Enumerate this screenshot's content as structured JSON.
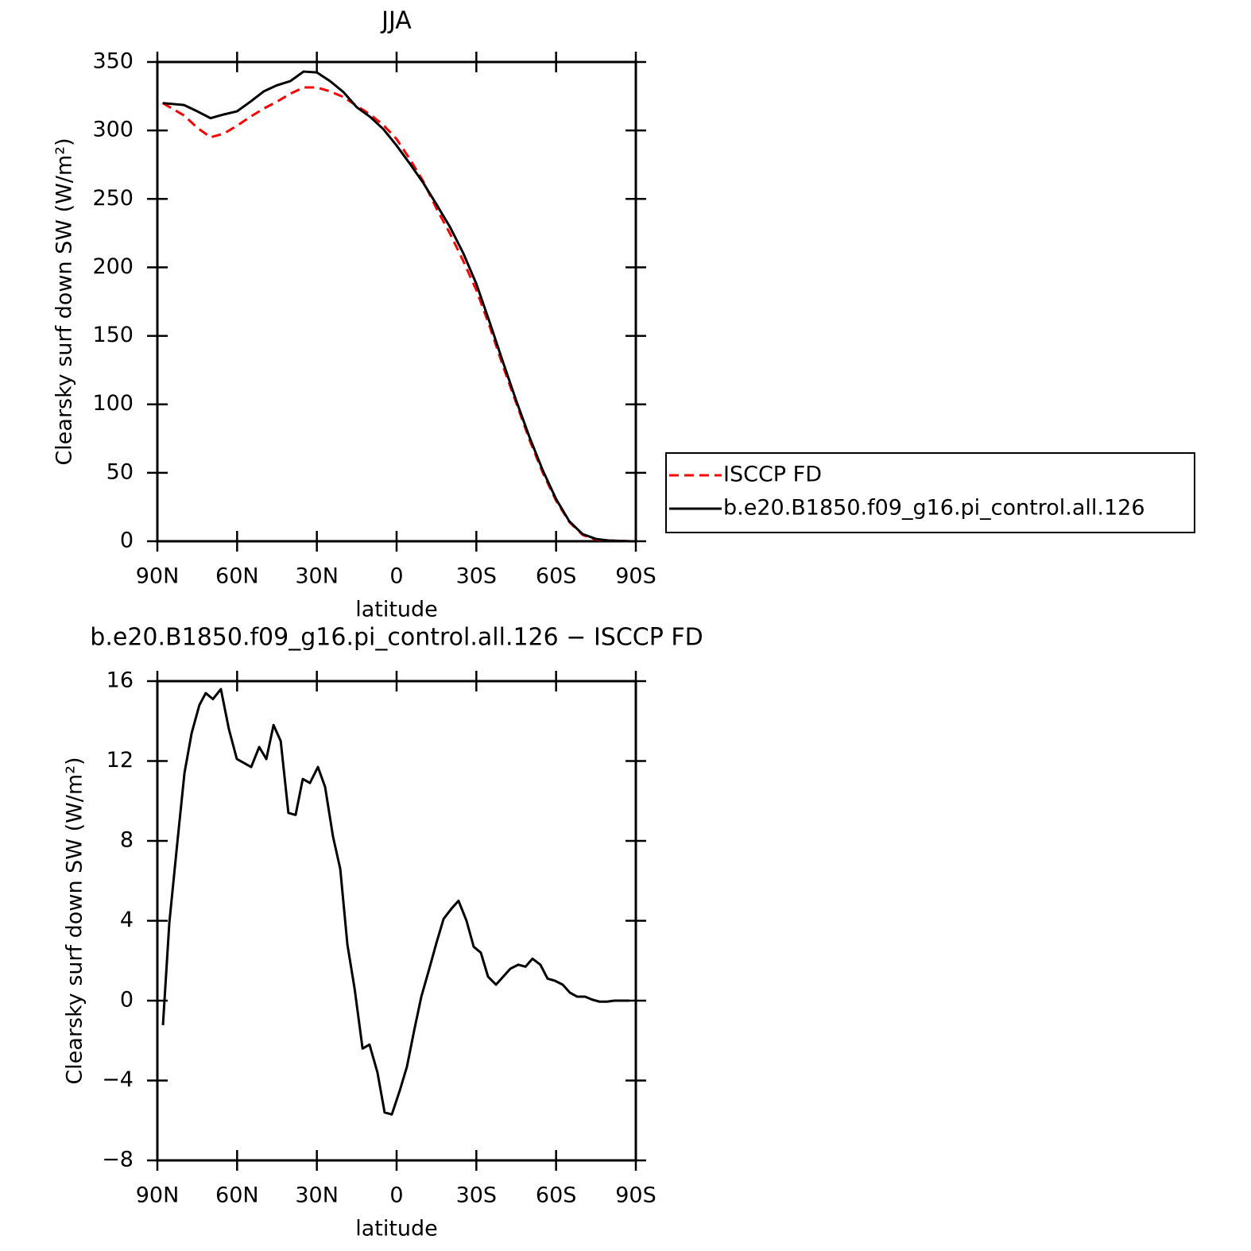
{
  "chart_data": [
    {
      "type": "line",
      "title": "JJA",
      "xlabel": "latitude",
      "ylabel": "Clearsky surf down SW (W/m²)",
      "x": [
        88,
        80,
        75,
        70,
        65,
        60,
        55,
        50,
        45,
        40,
        35,
        30,
        25,
        20,
        15,
        10,
        5,
        0,
        -5,
        -10,
        -15,
        -20,
        -25,
        -30,
        -35,
        -40,
        -45,
        -50,
        -55,
        -60,
        -65,
        -70,
        -75,
        -80,
        -88
      ],
      "xlim": [
        90,
        -90
      ],
      "xticks": [
        {
          "value": 90,
          "label": "90N"
        },
        {
          "value": 60,
          "label": "60N"
        },
        {
          "value": 30,
          "label": "30N"
        },
        0,
        {
          "value": -30,
          "label": "30S"
        },
        {
          "value": -60,
          "label": "60S"
        },
        {
          "value": -90,
          "label": "90S"
        }
      ],
      "ylim": [
        0,
        350
      ],
      "yticks": [
        0,
        50,
        100,
        150,
        200,
        250,
        300,
        350
      ],
      "legend": "right",
      "series": [
        {
          "name": "ISCCP FD",
          "color": "#ff0000",
          "linestyle": "dashed",
          "values": [
            320,
            311,
            302,
            295,
            297.7,
            303.5,
            310,
            316,
            321,
            326.8,
            331.4,
            331.4,
            328.5,
            324.4,
            318,
            311.7,
            304,
            293.7,
            279,
            263,
            243,
            225,
            205,
            183.4,
            157,
            128,
            101,
            74,
            50,
            29.6,
            14,
            4.6,
            1.2,
            0.5,
            0
          ]
        },
        {
          "name": "b.e20.B1850.f09_g16.pi_control.all.126",
          "color": "#000000",
          "linestyle": "solid",
          "values": [
            320,
            318.6,
            314,
            309,
            311.7,
            314,
            321,
            328.5,
            333,
            336,
            343,
            342.4,
            336,
            328,
            317,
            310,
            301,
            289,
            275.7,
            261.8,
            246,
            229.8,
            210.7,
            188,
            160,
            131,
            102.7,
            76,
            51.7,
            30.8,
            14.5,
            5.2,
            1.7,
            0.5,
            0
          ]
        }
      ]
    },
    {
      "type": "line",
      "title": "b.e20.B1850.f09_g16.pi_control.all.126 − ISCCP FD",
      "xlabel": "latitude",
      "ylabel": "Clearsky surf down SW (W/m²)",
      "x": [
        87.9,
        85.5,
        82.5,
        79.8,
        77.1,
        74.2,
        71.8,
        69.1,
        66.1,
        63.1,
        60.1,
        54.7,
        51.7,
        49.0,
        46.3,
        43.6,
        40.7,
        38.0,
        35.3,
        32.6,
        29.6,
        26.9,
        23.9,
        21.2,
        18.5,
        15.8,
        12.8,
        10.2,
        7.2,
        4.5,
        1.8,
        -1.2,
        -3.9,
        -6.6,
        -9.3,
        -12.3,
        -15.0,
        -17.7,
        -20.6,
        -23.3,
        -26.3,
        -29.0,
        -31.7,
        -34.4,
        -37.4,
        -40.1,
        -42.8,
        -45.8,
        -48.5,
        -51.1,
        -54.1,
        -56.8,
        -59.5,
        -62.5,
        -65.2,
        -67.9,
        -70.9,
        -73.6,
        -76.3,
        -79.2,
        -81.9,
        -84.6,
        -87.6
      ],
      "xlim": [
        90,
        -90
      ],
      "xticks": [
        {
          "value": 90,
          "label": "90N"
        },
        {
          "value": 60,
          "label": "60N"
        },
        {
          "value": 30,
          "label": "30N"
        },
        0,
        {
          "value": -30,
          "label": "30S"
        },
        {
          "value": -60,
          "label": "60S"
        },
        {
          "value": -90,
          "label": "90S"
        }
      ],
      "ylim": [
        -8,
        16
      ],
      "yticks": [
        {
          "value": -8,
          "label": "−8"
        },
        {
          "value": -4,
          "label": "−4"
        },
        0,
        4,
        8,
        12,
        16
      ],
      "series": [
        {
          "color": "#000000",
          "linestyle": "solid",
          "values": [
            -1.23,
            3.9,
            7.9,
            11.4,
            13.4,
            14.8,
            15.4,
            15.1,
            15.6,
            13.6,
            12.1,
            11.7,
            12.7,
            12.1,
            13.8,
            13.0,
            9.4,
            9.3,
            11.1,
            10.9,
            11.7,
            10.7,
            8.2,
            6.6,
            2.8,
            0.6,
            -2.4,
            -2.2,
            -3.6,
            -5.6,
            -5.7,
            -4.5,
            -3.3,
            -1.5,
            0.2,
            1.6,
            2.9,
            4.1,
            4.6,
            5.0,
            4.0,
            2.7,
            2.4,
            1.2,
            0.8,
            1.2,
            1.6,
            1.8,
            1.7,
            2.1,
            1.8,
            1.1,
            1.0,
            0.8,
            0.4,
            0.2,
            0.2,
            0.05,
            -0.05,
            -0.05,
            0,
            0,
            0
          ]
        }
      ]
    }
  ]
}
